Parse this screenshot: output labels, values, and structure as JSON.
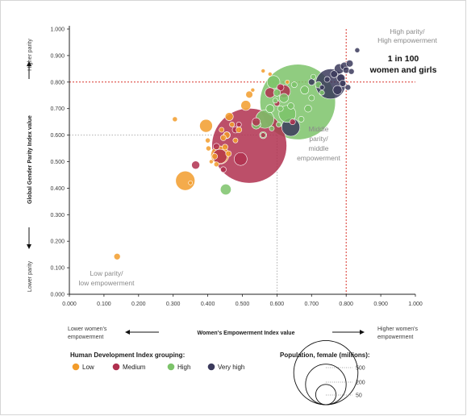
{
  "chart_data": {
    "type": "scatter",
    "title": "",
    "xlabel": "Women's Empowerment Index value",
    "ylabel": "Global Gender Parity Index value",
    "xlim": [
      0,
      1
    ],
    "ylim": [
      0,
      1
    ],
    "x_ticks": [
      "0.000",
      "0.100",
      "0.200",
      "0.300",
      "0.400",
      "0.500",
      "0.600",
      "0.700",
      "0.800",
      "0.900",
      "1.000"
    ],
    "y_ticks": [
      "0.000",
      "0.100",
      "0.200",
      "0.300",
      "0.400",
      "0.500",
      "0.600",
      "0.700",
      "0.800",
      "0.900",
      "1.000"
    ],
    "y_axis_top_label": "Higher parity",
    "y_axis_bottom_label": "Lower parity",
    "x_axis_left_label": [
      "Lower women's",
      "empowerment"
    ],
    "x_axis_right_label": [
      "Higher women's",
      "empowerment"
    ],
    "reference_lines": {
      "high_x": 0.8,
      "high_y": 0.8,
      "middle_x": 0.6,
      "middle_y": 0.6
    },
    "annotations": {
      "high": [
        "High parity/",
        "High empowerment"
      ],
      "headline": [
        "1 in 100",
        "women and girls"
      ],
      "middle": [
        "Middle",
        "parity/",
        "middle",
        "empowerment"
      ],
      "low": [
        "Low parity/",
        "low empowerment"
      ]
    },
    "legend": {
      "title": "Human Development Index grouping:",
      "groups": [
        {
          "name": "Low",
          "color": "#f29c2b"
        },
        {
          "name": "Medium",
          "color": "#b0304f"
        },
        {
          "name": "High",
          "color": "#7cc36a"
        },
        {
          "name": "Very high",
          "color": "#3b3a5c"
        }
      ]
    },
    "size_legend": {
      "title": "Population, female (millions):",
      "values": [
        500,
        200,
        50
      ]
    },
    "points": [
      {
        "x": 0.138,
        "y": 0.142,
        "pop": 5,
        "group": "Low"
      },
      {
        "x": 0.305,
        "y": 0.66,
        "pop": 3,
        "group": "Low"
      },
      {
        "x": 0.335,
        "y": 0.428,
        "pop": 45,
        "group": "Low"
      },
      {
        "x": 0.35,
        "y": 0.42,
        "pop": 2,
        "group": "Low"
      },
      {
        "x": 0.395,
        "y": 0.635,
        "pop": 20,
        "group": "Low"
      },
      {
        "x": 0.4,
        "y": 0.58,
        "pop": 3,
        "group": "Low"
      },
      {
        "x": 0.402,
        "y": 0.55,
        "pop": 3,
        "group": "Low"
      },
      {
        "x": 0.41,
        "y": 0.5,
        "pop": 2,
        "group": "Low"
      },
      {
        "x": 0.42,
        "y": 0.52,
        "pop": 4,
        "group": "Low"
      },
      {
        "x": 0.425,
        "y": 0.49,
        "pop": 3,
        "group": "Low"
      },
      {
        "x": 0.435,
        "y": 0.525,
        "pop": 40,
        "group": "Low"
      },
      {
        "x": 0.44,
        "y": 0.62,
        "pop": 3,
        "group": "Low"
      },
      {
        "x": 0.445,
        "y": 0.59,
        "pop": 4,
        "group": "Low"
      },
      {
        "x": 0.45,
        "y": 0.555,
        "pop": 4,
        "group": "Low"
      },
      {
        "x": 0.455,
        "y": 0.6,
        "pop": 5,
        "group": "Low"
      },
      {
        "x": 0.46,
        "y": 0.53,
        "pop": 4,
        "group": "Low"
      },
      {
        "x": 0.462,
        "y": 0.67,
        "pop": 8,
        "group": "Low"
      },
      {
        "x": 0.47,
        "y": 0.64,
        "pop": 3,
        "group": "Low"
      },
      {
        "x": 0.48,
        "y": 0.58,
        "pop": 3,
        "group": "Low"
      },
      {
        "x": 0.49,
        "y": 0.62,
        "pop": 4,
        "group": "Low"
      },
      {
        "x": 0.51,
        "y": 0.712,
        "pop": 12,
        "group": "Low"
      },
      {
        "x": 0.52,
        "y": 0.753,
        "pop": 6,
        "group": "Low"
      },
      {
        "x": 0.53,
        "y": 0.77,
        "pop": 2,
        "group": "Low"
      },
      {
        "x": 0.56,
        "y": 0.842,
        "pop": 2,
        "group": "Low"
      },
      {
        "x": 0.58,
        "y": 0.83,
        "pop": 2,
        "group": "Low"
      },
      {
        "x": 0.63,
        "y": 0.8,
        "pop": 2,
        "group": "Low"
      },
      {
        "x": 0.365,
        "y": 0.487,
        "pop": 8,
        "group": "Medium"
      },
      {
        "x": 0.425,
        "y": 0.557,
        "pop": 5,
        "group": "Medium"
      },
      {
        "x": 0.435,
        "y": 0.52,
        "pop": 25,
        "group": "Medium"
      },
      {
        "x": 0.445,
        "y": 0.47,
        "pop": 4,
        "group": "Medium"
      },
      {
        "x": 0.455,
        "y": 0.6,
        "pop": 6,
        "group": "Medium"
      },
      {
        "x": 0.48,
        "y": 0.62,
        "pop": 5,
        "group": "Medium"
      },
      {
        "x": 0.49,
        "y": 0.64,
        "pop": 3,
        "group": "Medium"
      },
      {
        "x": 0.495,
        "y": 0.51,
        "pop": 20,
        "group": "Medium"
      },
      {
        "x": 0.52,
        "y": 0.56,
        "pop": 680,
        "group": "Medium"
      },
      {
        "x": 0.54,
        "y": 0.65,
        "pop": 8,
        "group": "Medium"
      },
      {
        "x": 0.56,
        "y": 0.6,
        "pop": 3,
        "group": "Medium"
      },
      {
        "x": 0.58,
        "y": 0.76,
        "pop": 12,
        "group": "Medium"
      },
      {
        "x": 0.6,
        "y": 0.72,
        "pop": 4,
        "group": "Medium"
      },
      {
        "x": 0.61,
        "y": 0.78,
        "pop": 6,
        "group": "Medium"
      },
      {
        "x": 0.62,
        "y": 0.765,
        "pop": 20,
        "group": "Medium"
      },
      {
        "x": 0.645,
        "y": 0.65,
        "pop": 4,
        "group": "Medium"
      },
      {
        "x": 0.452,
        "y": 0.395,
        "pop": 14,
        "group": "High"
      },
      {
        "x": 0.54,
        "y": 0.64,
        "pop": 10,
        "group": "High"
      },
      {
        "x": 0.56,
        "y": 0.6,
        "pop": 6,
        "group": "High"
      },
      {
        "x": 0.565,
        "y": 0.66,
        "pop": 40,
        "group": "High"
      },
      {
        "x": 0.58,
        "y": 0.7,
        "pop": 8,
        "group": "High"
      },
      {
        "x": 0.585,
        "y": 0.625,
        "pop": 3,
        "group": "High"
      },
      {
        "x": 0.59,
        "y": 0.8,
        "pop": 20,
        "group": "High"
      },
      {
        "x": 0.595,
        "y": 0.73,
        "pop": 3,
        "group": "High"
      },
      {
        "x": 0.6,
        "y": 0.76,
        "pop": 6,
        "group": "High"
      },
      {
        "x": 0.605,
        "y": 0.64,
        "pop": 3,
        "group": "High"
      },
      {
        "x": 0.61,
        "y": 0.7,
        "pop": 4,
        "group": "High"
      },
      {
        "x": 0.62,
        "y": 0.74,
        "pop": 10,
        "group": "High"
      },
      {
        "x": 0.63,
        "y": 0.68,
        "pop": 35,
        "group": "High"
      },
      {
        "x": 0.64,
        "y": 0.71,
        "pop": 5,
        "group": "High"
      },
      {
        "x": 0.65,
        "y": 0.79,
        "pop": 4,
        "group": "High"
      },
      {
        "x": 0.66,
        "y": 0.725,
        "pop": 690,
        "group": "High"
      },
      {
        "x": 0.67,
        "y": 0.66,
        "pop": 4,
        "group": "High"
      },
      {
        "x": 0.68,
        "y": 0.77,
        "pop": 8,
        "group": "High"
      },
      {
        "x": 0.69,
        "y": 0.7,
        "pop": 6,
        "group": "High"
      },
      {
        "x": 0.7,
        "y": 0.74,
        "pop": 4,
        "group": "High"
      },
      {
        "x": 0.705,
        "y": 0.82,
        "pop": 3,
        "group": "High"
      },
      {
        "x": 0.72,
        "y": 0.79,
        "pop": 5,
        "group": "High"
      },
      {
        "x": 0.73,
        "y": 0.76,
        "pop": 3,
        "group": "High"
      },
      {
        "x": 0.64,
        "y": 0.63,
        "pop": 40,
        "group": "Very high"
      },
      {
        "x": 0.7,
        "y": 0.8,
        "pop": 5,
        "group": "Very high"
      },
      {
        "x": 0.73,
        "y": 0.78,
        "pop": 3,
        "group": "Very high"
      },
      {
        "x": 0.745,
        "y": 0.81,
        "pop": 4,
        "group": "Very high"
      },
      {
        "x": 0.755,
        "y": 0.793,
        "pop": 110,
        "group": "Very high"
      },
      {
        "x": 0.765,
        "y": 0.83,
        "pop": 6,
        "group": "Very high"
      },
      {
        "x": 0.775,
        "y": 0.77,
        "pop": 10,
        "group": "Very high"
      },
      {
        "x": 0.78,
        "y": 0.85,
        "pop": 12,
        "group": "Very high"
      },
      {
        "x": 0.785,
        "y": 0.815,
        "pop": 8,
        "group": "Very high"
      },
      {
        "x": 0.79,
        "y": 0.795,
        "pop": 5,
        "group": "Very high"
      },
      {
        "x": 0.795,
        "y": 0.86,
        "pop": 8,
        "group": "Very high"
      },
      {
        "x": 0.8,
        "y": 0.845,
        "pop": 5,
        "group": "Very high"
      },
      {
        "x": 0.805,
        "y": 0.78,
        "pop": 4,
        "group": "Very high"
      },
      {
        "x": 0.81,
        "y": 0.87,
        "pop": 6,
        "group": "Very high"
      },
      {
        "x": 0.815,
        "y": 0.84,
        "pop": 4,
        "group": "Very high"
      },
      {
        "x": 0.832,
        "y": 0.92,
        "pop": 3,
        "group": "Very high"
      }
    ]
  }
}
